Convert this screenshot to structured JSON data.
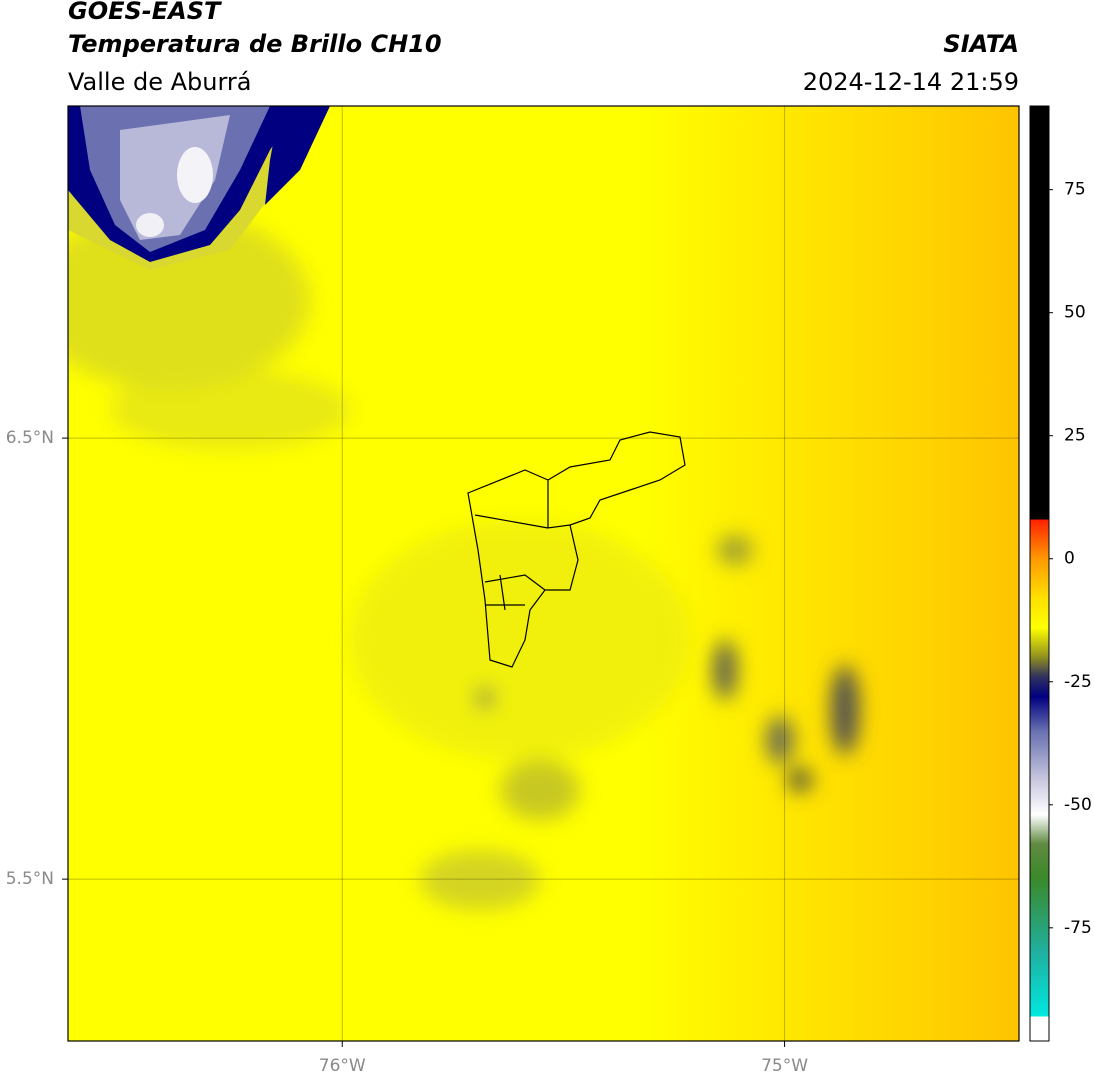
{
  "chart_data": {
    "type": "map",
    "title": "GOES-EAST",
    "subtitle": "Temperatura de Brillo CH10",
    "region": "Valle de Aburrá",
    "source": "SIATA",
    "timestamp": "2024-12-14 21:59",
    "xlim": [
      -76.62,
      -74.47
    ],
    "ylim": [
      5.133,
      7.253
    ],
    "xticks": [
      {
        "value": -76,
        "label": "76°W"
      },
      {
        "value": -75,
        "label": "75°W"
      }
    ],
    "yticks": [
      {
        "value": 5.5,
        "label": "5.5°N"
      },
      {
        "value": 6.5,
        "label": "6.5°N"
      }
    ],
    "grid": true,
    "colorbar": {
      "clim": [
        -98,
        92
      ],
      "ticks": [
        -75,
        -50,
        -25,
        0,
        25,
        50,
        75
      ],
      "stops": [
        {
          "value": -98,
          "color": "#ffffff"
        },
        {
          "value": -93,
          "color": "#ffffff"
        },
        {
          "value": -93,
          "color": "#00e8e0"
        },
        {
          "value": -80,
          "color": "#20b0a0"
        },
        {
          "value": -65,
          "color": "#3a8a2a"
        },
        {
          "value": -58,
          "color": "#608a40"
        },
        {
          "value": -52,
          "color": "#ffffff"
        },
        {
          "value": -45,
          "color": "#c8c8e0"
        },
        {
          "value": -35,
          "color": "#6870b0"
        },
        {
          "value": -28,
          "color": "#000080"
        },
        {
          "value": -24,
          "color": "#303060"
        },
        {
          "value": -20,
          "color": "#909020"
        },
        {
          "value": -14,
          "color": "#ffff00"
        },
        {
          "value": -8,
          "color": "#ffe000"
        },
        {
          "value": 0,
          "color": "#ff9900"
        },
        {
          "value": 8,
          "color": "#ff2000"
        },
        {
          "value": 8,
          "color": "#000000"
        },
        {
          "value": 92,
          "color": "#000000"
        }
      ]
    }
  }
}
